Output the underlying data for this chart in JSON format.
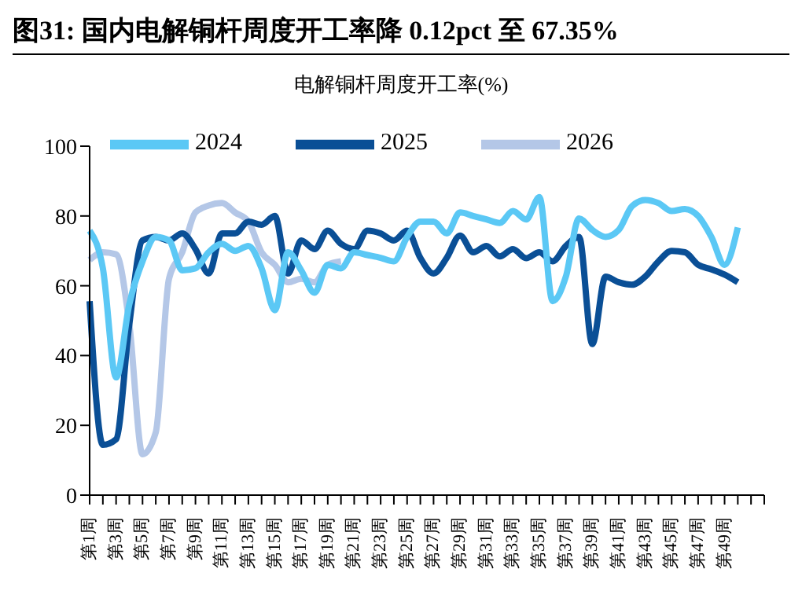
{
  "chart_data": {
    "type": "line",
    "title": "图31:  国内电解铜杆周度开工率降 0.12pct 至 67.35%",
    "subtitle": "电解铜杆周度开工率(%)",
    "categories": [
      "第1周",
      null,
      "第3周",
      null,
      "第5周",
      null,
      "第7周",
      null,
      "第9周",
      null,
      "第11周",
      null,
      "第13周",
      null,
      "第15周",
      null,
      "第17周",
      null,
      "第19周",
      null,
      "第21周",
      null,
      "第23周",
      null,
      "第25周",
      null,
      "第27周",
      null,
      "第29周",
      null,
      "第31周",
      null,
      "第33周",
      null,
      "第35周",
      null,
      "第37周",
      null,
      "第39周",
      null,
      "第41周",
      null,
      "第43周",
      null,
      "第45周",
      null,
      "第47周",
      null,
      "第49周",
      null,
      null,
      null
    ],
    "series": [
      {
        "name": "2026",
        "color": "#b4c7e7",
        "values": [
          67.4,
          69.6,
          69,
          49,
          11.7,
          18,
          62,
          69.6,
          81,
          83,
          83.7,
          81,
          78.4,
          69.6,
          66,
          61,
          62,
          61,
          66,
          67,
          null,
          null,
          null,
          null,
          null,
          null,
          null,
          null,
          null,
          null,
          null,
          null,
          null,
          null,
          null,
          null,
          null,
          null,
          null,
          null,
          null,
          null,
          null,
          null,
          null,
          null,
          null,
          null,
          null,
          null,
          null,
          null
        ]
      },
      {
        "name": "2025",
        "color": "#0a4f96",
        "values": [
          55.6,
          14.4,
          16,
          49,
          73,
          74,
          73,
          75,
          70.5,
          63.5,
          75,
          75,
          78.4,
          77.5,
          80,
          63.5,
          73,
          70.5,
          75.8,
          72,
          70.5,
          75.8,
          75,
          73,
          75.8,
          68,
          63.5,
          68,
          74.4,
          69.6,
          71.4,
          68.4,
          70.5,
          67.9,
          69.6,
          67,
          71.4,
          74,
          43.3,
          62.6,
          61,
          60.3,
          62.6,
          67,
          70,
          69.6,
          66,
          64.7,
          63.2,
          61,
          null,
          null
        ]
      },
      {
        "name": "2024",
        "color": "#5bc8f5",
        "values": [
          75.8,
          65,
          33.7,
          54.7,
          67,
          74,
          73,
          64.4,
          65,
          69.6,
          72,
          70,
          71.4,
          65,
          53,
          69.6,
          64.4,
          58,
          66,
          65,
          69.6,
          68.8,
          68,
          67,
          74,
          78.4,
          78.4,
          75,
          81,
          80,
          79,
          78,
          81.4,
          79,
          85.4,
          55.6,
          62.6,
          79.3,
          76,
          74,
          76,
          82.8,
          84.6,
          83.7,
          81.4,
          82,
          80,
          74,
          66,
          76.7,
          null,
          null
        ]
      }
    ],
    "ylim": [
      0,
      100
    ],
    "yticks": [
      0,
      20,
      40,
      60,
      80,
      100
    ],
    "grid": false,
    "legend": "top",
    "marker": "none",
    "line_style": "solid"
  }
}
